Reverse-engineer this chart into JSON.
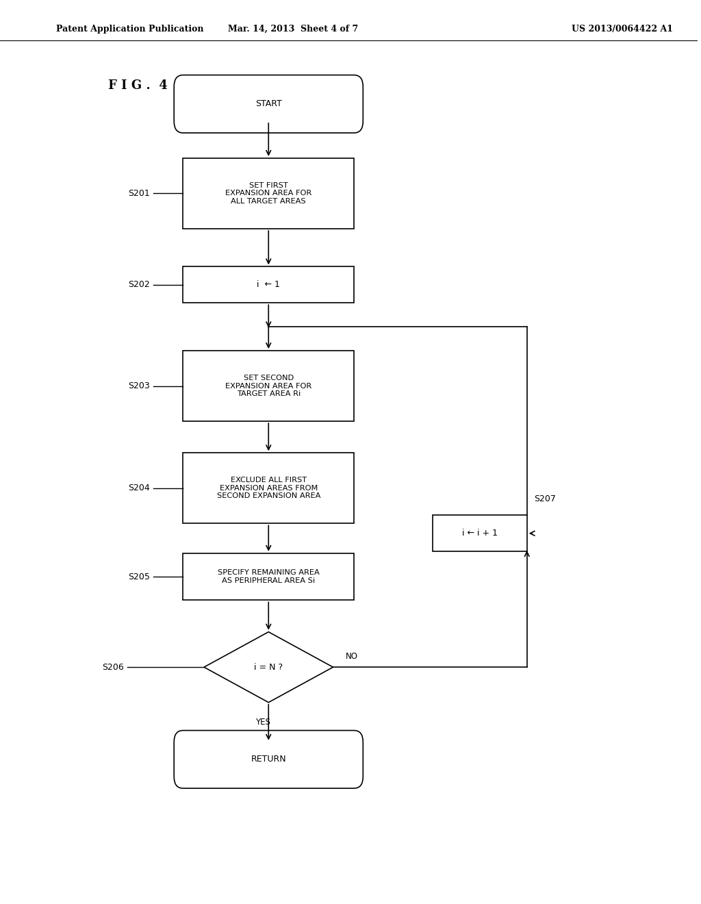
{
  "header_left": "Patent Application Publication",
  "header_center": "Mar. 14, 2013  Sheet 4 of 7",
  "header_right": "US 2013/0064422 A1",
  "fig_label": "F I G .  4",
  "background_color": "#ffffff",
  "line_color": "#000000",
  "box_color": "#ffffff",
  "start_label": "START",
  "return_label": "RETURN",
  "s201_label": "SET FIRST\nEXPANSION AREA FOR\nALL TARGET AREAS",
  "s202_label": "i  ← 1",
  "s203_label": "SET SECOND\nEXPANSION AREA FOR\nTARGET AREA Ri",
  "s204_label": "EXCLUDE ALL FIRST\nEXPANSION AREAS FROM\nSECOND EXPANSION AREA",
  "s205_label": "SPECIFY REMAINING AREA\nAS PERIPHERAL AREA Si",
  "s206_label": "i = N ?",
  "s207_label": "i ← i + 1",
  "no_label": "NO",
  "yes_label": "YES",
  "step_labels": [
    "S201",
    "S202",
    "S203",
    "S204",
    "S205",
    "S206",
    "S207"
  ]
}
